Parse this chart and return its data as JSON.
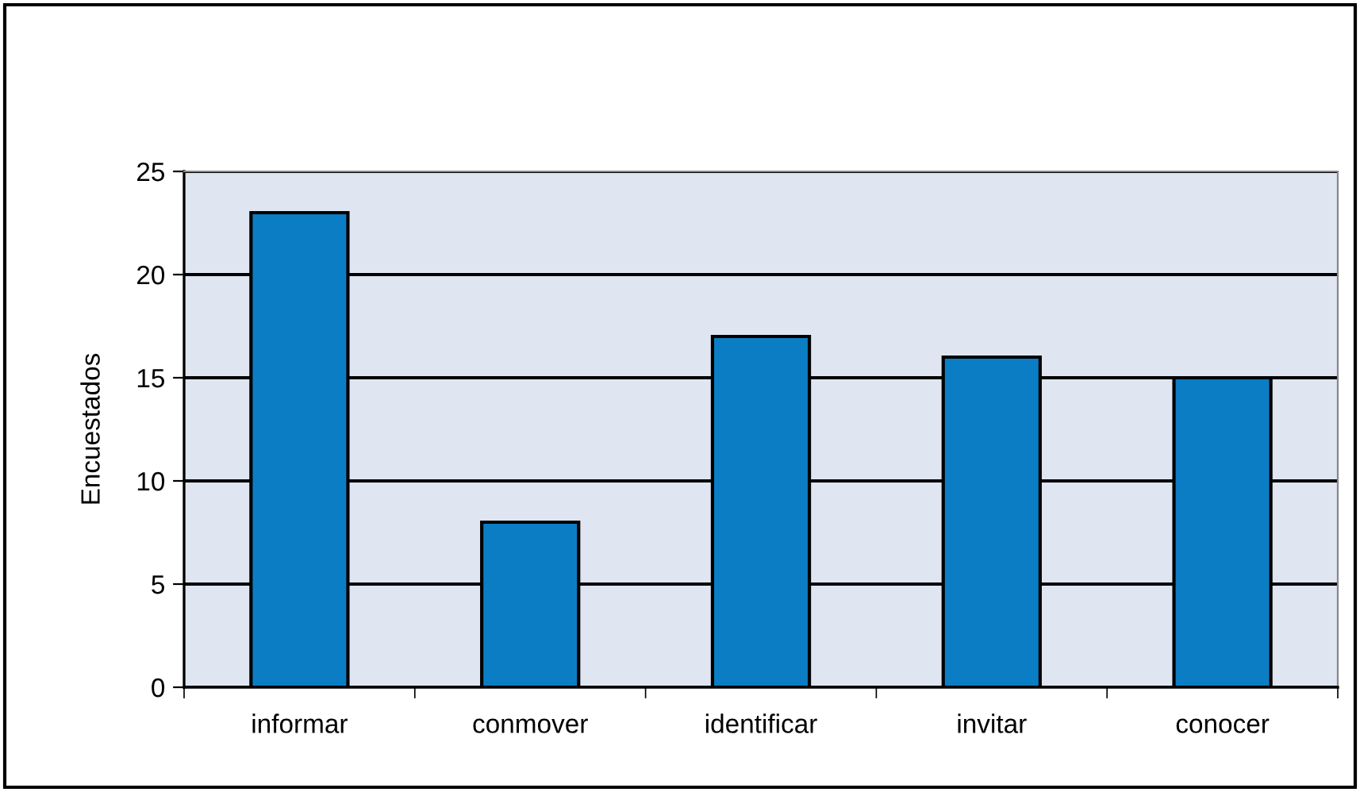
{
  "chart_data": {
    "type": "bar",
    "ylabel": "Encuestados",
    "categories": [
      "informar",
      "conmover",
      "identificar",
      "invitar",
      "conocer"
    ],
    "values": [
      23,
      8,
      17,
      16,
      15
    ],
    "color": "#0b7dc4",
    "ylim": [
      0,
      25
    ],
    "yticks": [
      0,
      5,
      10,
      15,
      20,
      25
    ],
    "grid": "y"
  }
}
